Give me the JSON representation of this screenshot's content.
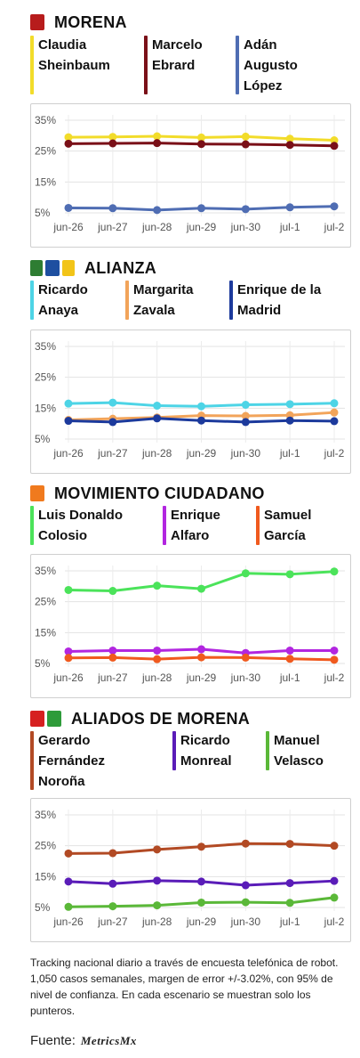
{
  "dates": [
    "jun-26",
    "jun-27",
    "jun-28",
    "jun-29",
    "jun-30",
    "jul-1",
    "jul-2"
  ],
  "y_ticks": [
    "35%",
    "25%",
    "15%",
    "5%"
  ],
  "sections": [
    {
      "id": "morena",
      "title": "MORENA",
      "candidates": [
        {
          "name_lines": [
            "Claudia",
            "Sheinbaum"
          ],
          "color": "#f2dc2a"
        },
        {
          "name_lines": [
            "Marcelo",
            "Ebrard"
          ],
          "color": "#7a1018"
        },
        {
          "name_lines": [
            "Adán",
            "Augusto",
            "López"
          ],
          "color": "#4f6db3"
        }
      ]
    },
    {
      "id": "alianza",
      "title": "ALIANZA",
      "candidates": [
        {
          "name_lines": [
            "Ricardo",
            "Anaya"
          ],
          "color": "#4dd4e6"
        },
        {
          "name_lines": [
            "Margarita",
            "Zavala"
          ],
          "color": "#f2a45a"
        },
        {
          "name_lines": [
            "Enrique de la",
            "Madrid"
          ],
          "color": "#1c3a9c"
        }
      ]
    },
    {
      "id": "mc",
      "title": "MOVIMIENTO CIUDADANO",
      "candidates": [
        {
          "name_lines": [
            "Luis Donaldo",
            "Colosio"
          ],
          "color": "#4be35a"
        },
        {
          "name_lines": [
            "Enrique",
            "Alfaro"
          ],
          "color": "#b226e0"
        },
        {
          "name_lines": [
            "Samuel",
            "García"
          ],
          "color": "#f05a1e"
        }
      ]
    },
    {
      "id": "aliados",
      "title": "ALIADOS DE MORENA",
      "candidates": [
        {
          "name_lines": [
            "Gerardo",
            "Fernández",
            "Noroña"
          ],
          "color": "#b24a24"
        },
        {
          "name_lines": [
            "Ricardo",
            "Monreal"
          ],
          "color": "#5a1cb8"
        },
        {
          "name_lines": [
            "Manuel",
            "Velasco"
          ],
          "color": "#5ab838"
        }
      ]
    }
  ],
  "chart_data": [
    {
      "type": "line",
      "title": "MORENA",
      "x": [
        "jun-26",
        "jun-27",
        "jun-28",
        "jun-29",
        "jun-30",
        "jul-1",
        "jul-2"
      ],
      "ylim": [
        5,
        35
      ],
      "series": [
        {
          "name": "Claudia Sheinbaum",
          "color": "#f2dc2a",
          "values": [
            29.5,
            29.6,
            29.8,
            29.4,
            29.7,
            29.0,
            28.5
          ]
        },
        {
          "name": "Marcelo Ebrard",
          "color": "#7a1018",
          "values": [
            27.4,
            27.5,
            27.6,
            27.3,
            27.2,
            27.0,
            26.7
          ]
        },
        {
          "name": "Adán Augusto López",
          "color": "#4f6db3",
          "values": [
            6.6,
            6.5,
            5.9,
            6.5,
            6.2,
            6.8,
            7.1
          ]
        }
      ]
    },
    {
      "type": "line",
      "title": "ALIANZA",
      "x": [
        "jun-26",
        "jun-27",
        "jun-28",
        "jun-29",
        "jun-30",
        "jul-1",
        "jul-2"
      ],
      "ylim": [
        5,
        35
      ],
      "series": [
        {
          "name": "Ricardo Anaya",
          "color": "#4dd4e6",
          "values": [
            16.5,
            16.8,
            15.8,
            15.6,
            16.1,
            16.3,
            16.6
          ]
        },
        {
          "name": "Margarita Zavala",
          "color": "#f2a45a",
          "values": [
            11.2,
            11.6,
            12.0,
            12.6,
            12.5,
            12.7,
            13.6
          ]
        },
        {
          "name": "Enrique de la Madrid",
          "color": "#1c3a9c",
          "values": [
            10.9,
            10.5,
            11.7,
            11.0,
            10.5,
            11.0,
            10.8
          ]
        }
      ]
    },
    {
      "type": "line",
      "title": "MOVIMIENTO CIUDADANO",
      "x": [
        "jun-26",
        "jun-27",
        "jun-28",
        "jun-29",
        "jun-30",
        "jul-1",
        "jul-2"
      ],
      "ylim": [
        5,
        35
      ],
      "series": [
        {
          "name": "Luis Donaldo Colosio",
          "color": "#4be35a",
          "values": [
            28.8,
            28.5,
            30.2,
            29.2,
            34.2,
            33.9,
            34.8
          ]
        },
        {
          "name": "Enrique Alfaro",
          "color": "#b226e0",
          "values": [
            8.9,
            9.2,
            9.2,
            9.6,
            8.4,
            9.2,
            9.2
          ]
        },
        {
          "name": "Samuel García",
          "color": "#f05a1e",
          "values": [
            6.8,
            6.9,
            6.4,
            7.0,
            6.9,
            6.5,
            6.2
          ]
        }
      ]
    },
    {
      "type": "line",
      "title": "ALIADOS DE MORENA",
      "x": [
        "jun-26",
        "jun-27",
        "jun-28",
        "jun-29",
        "jun-30",
        "jul-1",
        "jul-2"
      ],
      "ylim": [
        5,
        35
      ],
      "series": [
        {
          "name": "Gerardo Fernández Noroña",
          "color": "#b24a24",
          "values": [
            22.5,
            22.6,
            23.8,
            24.7,
            25.7,
            25.6,
            25.0
          ]
        },
        {
          "name": "Ricardo Monreal",
          "color": "#5a1cb8",
          "values": [
            13.4,
            12.7,
            13.7,
            13.4,
            12.2,
            12.9,
            13.6
          ]
        },
        {
          "name": "Manuel Velasco",
          "color": "#5ab838",
          "values": [
            5.2,
            5.4,
            5.7,
            6.6,
            6.7,
            6.5,
            8.2
          ]
        }
      ]
    }
  ],
  "footer": {
    "text": "Tracking nacional diario a través de encuesta telefónica de robot. 1,050 casos semanales, margen de error +/-3.02%, con 95% de nivel de confianza. En cada escenario se muestran solo los punteros.",
    "source_label": "Fuente:",
    "brand": "MetricsMx"
  }
}
